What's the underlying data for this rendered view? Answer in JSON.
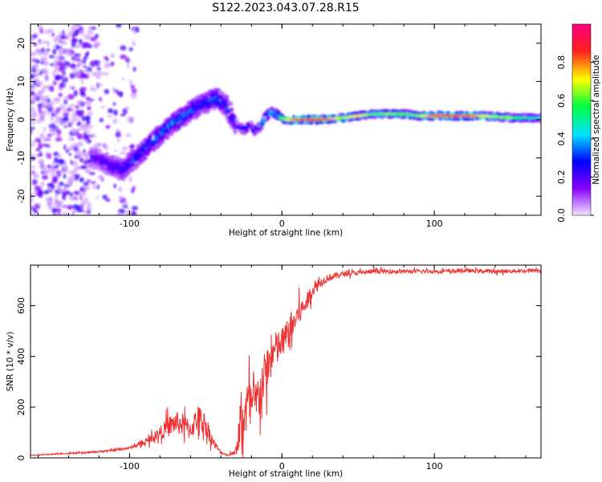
{
  "title": "S122.2023.043.07.28.R15",
  "chart_data": [
    {
      "type": "heatmap",
      "xlabel": "Height of straight line (km)",
      "ylabel": "Frequency (Hz)",
      "xlim": [
        -165,
        170
      ],
      "ylim": [
        -25,
        25
      ],
      "x_ticks": [
        -100,
        0,
        100
      ],
      "y_ticks": [
        -20,
        -10,
        0,
        10,
        20
      ],
      "x_tick_labels": [
        "-100",
        "0",
        "100"
      ],
      "y_tick_labels": [
        "-20",
        "-10",
        "0",
        "10",
        "20"
      ],
      "colorbar": {
        "label": "Normalized spectral amplitude",
        "range": [
          0.0,
          1.0
        ],
        "ticks": [
          0.0,
          0.2,
          0.4,
          0.6,
          0.8
        ],
        "tick_labels": [
          "0.0",
          "0.2",
          "0.4",
          "0.6",
          "0.8"
        ],
        "colors": [
          "#f0e4ff",
          "#8a00ff",
          "#0000ff",
          "#00e0ff",
          "#00ff40",
          "#ffff00",
          "#ff2020",
          "#ff0080"
        ]
      },
      "ridge": {
        "x": [
          -122,
          -112,
          -104,
          -96,
          -88,
          -80,
          -72,
          -64,
          -57,
          -50,
          -43,
          -37,
          -33,
          -29,
          -25,
          -21,
          -18,
          -14,
          -10,
          -6,
          -2,
          2,
          10,
          25,
          40,
          50,
          60,
          70,
          80,
          90,
          100,
          110,
          120,
          130,
          140,
          150,
          160,
          168
        ],
        "y": [
          -10,
          -12,
          -13,
          -10,
          -7,
          -4,
          -1,
          1,
          3,
          4.5,
          5.5,
          4,
          1,
          -2,
          -2.5,
          -1.5,
          -3,
          -1.5,
          1,
          2,
          1,
          0,
          0,
          0,
          0.5,
          1,
          1.5,
          1.5,
          1.5,
          1,
          1,
          1,
          1,
          1,
          0.8,
          0.5,
          0.5,
          0.5
        ],
        "amplitude": [
          0.2,
          0.25,
          0.28,
          0.3,
          0.32,
          0.33,
          0.35,
          0.35,
          0.32,
          0.3,
          0.35,
          0.3,
          0.3,
          0.25,
          0.3,
          0.28,
          0.3,
          0.4,
          0.45,
          0.45,
          0.5,
          0.6,
          0.8,
          0.85,
          0.6,
          0.7,
          0.55,
          0.6,
          0.55,
          0.6,
          0.8,
          0.85,
          0.85,
          0.7,
          0.6,
          0.6,
          0.45,
          0.4
        ]
      },
      "noise_region_x": [
        -165,
        -125
      ]
    },
    {
      "type": "line",
      "xlabel": "Height of straight line (km)",
      "ylabel": "SNR (10 * v/v)",
      "xlim": [
        -165,
        170
      ],
      "ylim": [
        0,
        760
      ],
      "x_ticks": [
        -100,
        0,
        100
      ],
      "y_ticks": [
        0,
        200,
        400,
        600
      ],
      "x_tick_labels": [
        "-100",
        "0",
        "100"
      ],
      "y_tick_labels": [
        "0",
        "200",
        "400",
        "600"
      ],
      "color": "#ee3333",
      "series": [
        {
          "x": [
            -165,
            -150,
            -130,
            -110,
            -100,
            -90,
            -80,
            -75,
            -70,
            -65,
            -60,
            -55,
            -50,
            -45,
            -40,
            -35,
            -30,
            -26,
            -22,
            -18,
            -15,
            -10,
            -5,
            0,
            5,
            10,
            15,
            20,
            25,
            30,
            40,
            50,
            60,
            80,
            100,
            120,
            140,
            160,
            170
          ],
          "y": [
            10,
            15,
            20,
            30,
            40,
            60,
            100,
            120,
            140,
            130,
            110,
            160,
            130,
            60,
            20,
            10,
            30,
            150,
            220,
            200,
            250,
            350,
            420,
            450,
            500,
            560,
            600,
            660,
            690,
            710,
            725,
            730,
            735,
            735,
            735,
            738,
            735,
            738,
            740
          ],
          "noise": [
            3,
            4,
            5,
            8,
            10,
            20,
            50,
            80,
            90,
            90,
            80,
            100,
            90,
            40,
            10,
            5,
            30,
            200,
            200,
            180,
            200,
            180,
            150,
            130,
            120,
            100,
            80,
            50,
            40,
            30,
            20,
            18,
            18,
            15,
            15,
            15,
            15,
            15,
            15
          ]
        }
      ]
    }
  ]
}
